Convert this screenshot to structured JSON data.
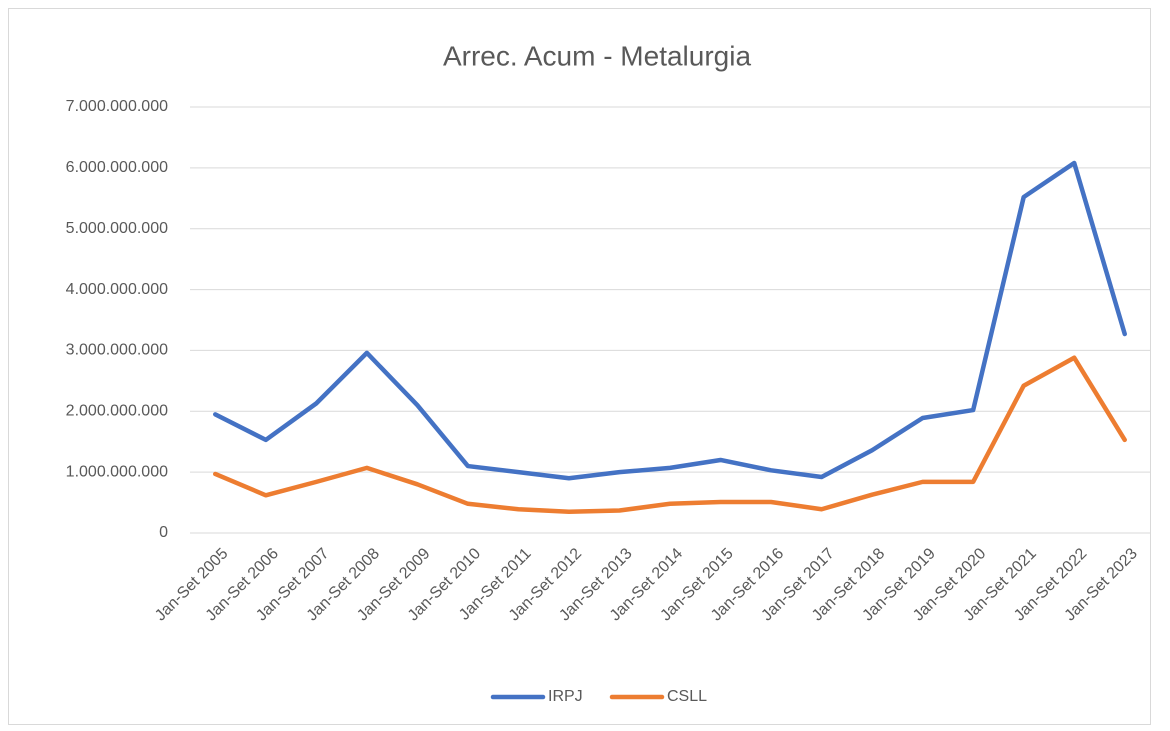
{
  "chart_data": {
    "type": "line",
    "title": "Arrec. Acum - Metalurgia",
    "categories": [
      "Jan-Set 2005",
      "Jan-Set 2006",
      "Jan-Set 2007",
      "Jan-Set 2008",
      "Jan-Set 2009",
      "Jan-Set 2010",
      "Jan-Set 2011",
      "Jan-Set 2012",
      "Jan-Set 2013",
      "Jan-Set 2014",
      "Jan-Set 2015",
      "Jan-Set 2016",
      "Jan-Set 2017",
      "Jan-Set 2018",
      "Jan-Set 2019",
      "Jan-Set 2020",
      "Jan-Set 2021",
      "Jan-Set 2022",
      "Jan-Set 2023"
    ],
    "series": [
      {
        "name": "IRPJ",
        "color": "#4472c4",
        "values": [
          1950000000,
          1530000000,
          2130000000,
          2960000000,
          2100000000,
          1100000000,
          1000000000,
          900000000,
          1000000000,
          1070000000,
          1200000000,
          1030000000,
          920000000,
          1360000000,
          1890000000,
          2020000000,
          5520000000,
          6080000000,
          3270000000
        ]
      },
      {
        "name": "CSLL",
        "color": "#ed7d31",
        "values": [
          970000000,
          620000000,
          840000000,
          1070000000,
          800000000,
          480000000,
          390000000,
          350000000,
          370000000,
          480000000,
          510000000,
          510000000,
          390000000,
          630000000,
          840000000,
          840000000,
          2420000000,
          2880000000,
          1530000000
        ]
      }
    ],
    "ylim": [
      0,
      7000000000
    ],
    "yticks": [
      0,
      {
        "value": 1000000000,
        "label": "1.000.000.000"
      },
      {
        "value": 2000000000,
        "label": "2.000.000.000"
      },
      {
        "value": 3000000000,
        "label": "3.000.000.000"
      },
      {
        "value": 4000000000,
        "label": "4.000.000.000"
      },
      {
        "value": 5000000000,
        "label": "5.000.000.000"
      },
      {
        "value": 6000000000,
        "label": "6.000.000.000"
      },
      {
        "value": 7000000000,
        "label": "7.000.000.000"
      }
    ],
    "grid": true,
    "legend": "bottom"
  }
}
